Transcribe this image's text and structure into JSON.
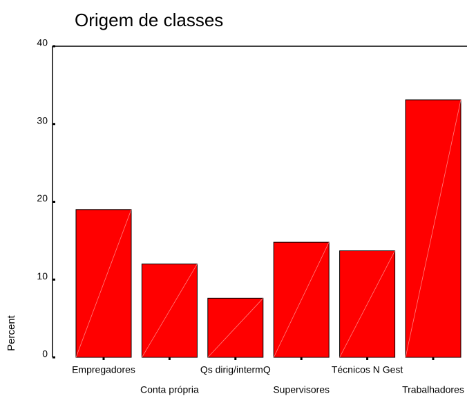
{
  "chart_data": {
    "type": "bar",
    "title": "Origem de classes",
    "ylabel": "Percent",
    "categories": [
      "Empregadores",
      "Conta própria",
      "Qs dirig/intermQ",
      "Supervisores",
      "Técnicos N Gest",
      "Trabalhadores"
    ],
    "values": [
      19.0,
      12.0,
      7.6,
      14.8,
      13.7,
      33.1
    ],
    "color": "#ff0000",
    "ylim": [
      0,
      40
    ],
    "yticks": [
      0,
      10,
      20,
      30,
      40
    ]
  }
}
